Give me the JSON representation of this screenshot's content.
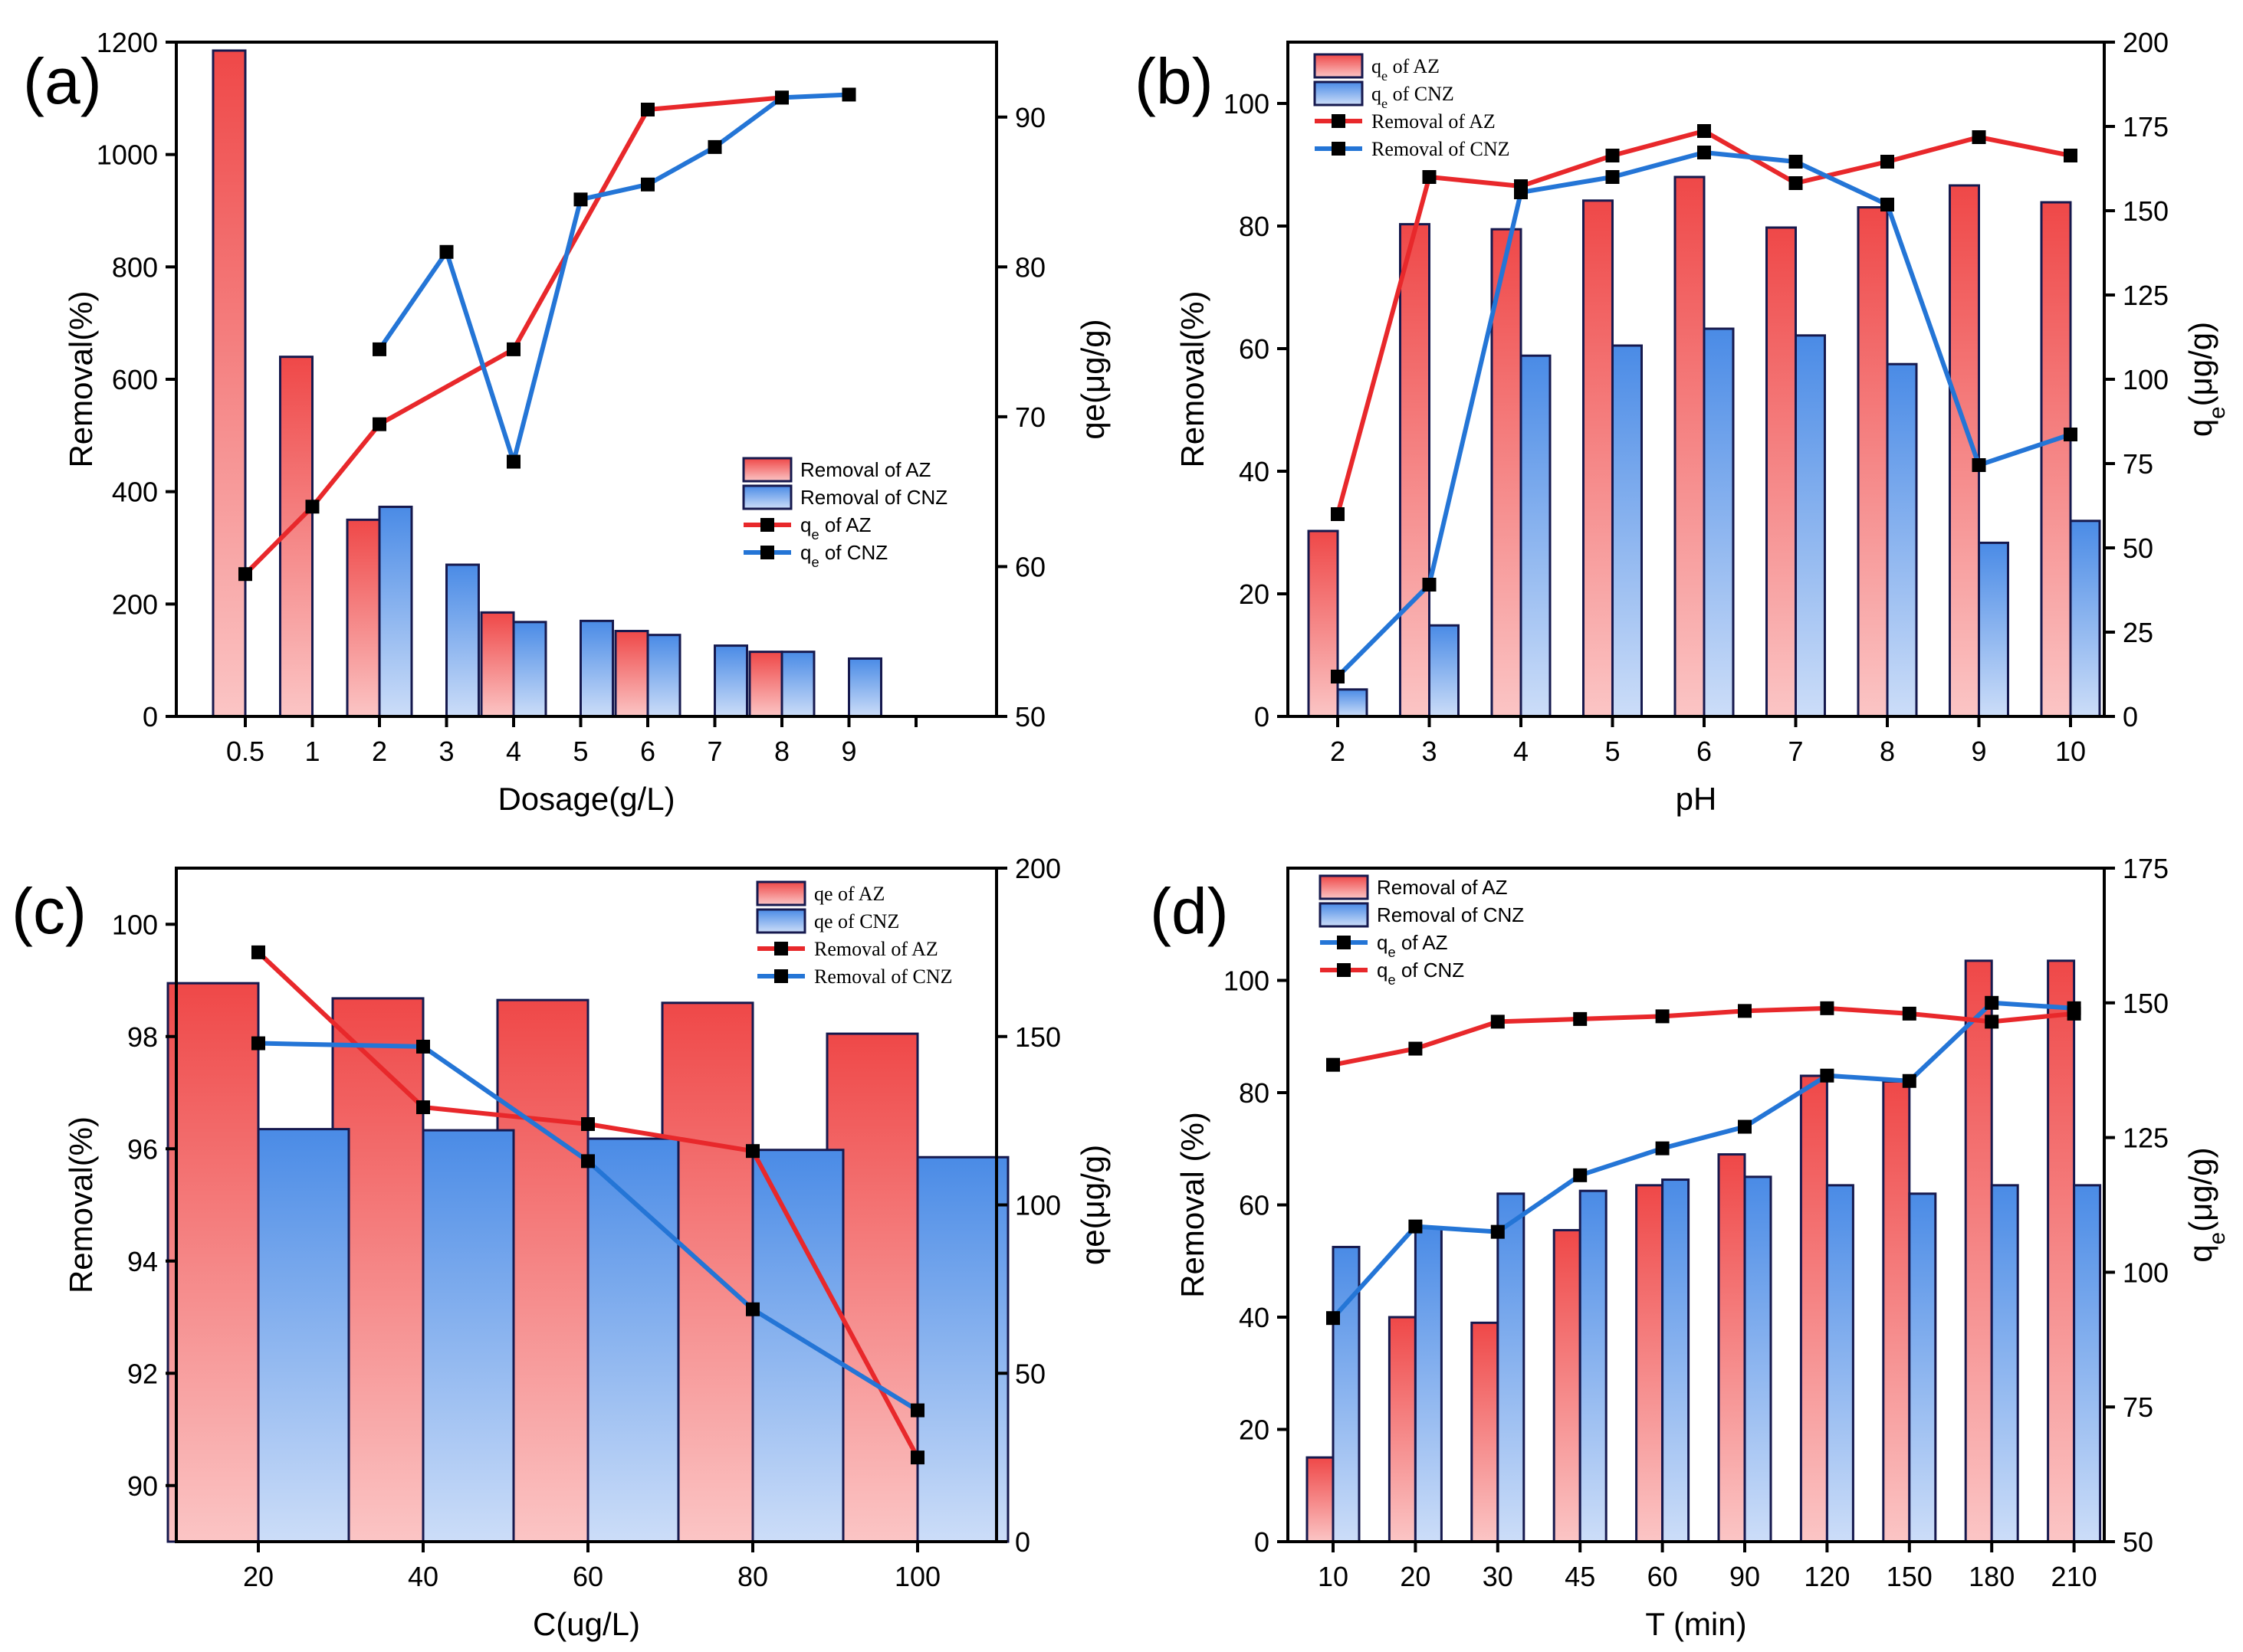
{
  "chart_data": [
    {
      "panel": "(a)",
      "type": "bar",
      "xlabel": "Dosage(g/L)",
      "ylabel": "Removal(%)",
      "y2label": "qe(μg/g)",
      "xticks": [
        "0.5",
        "1",
        "2",
        "3",
        "4",
        "5",
        "6",
        "7",
        "8",
        "9"
      ],
      "ylim": [
        0,
        1200
      ],
      "yticks": [
        0,
        200,
        400,
        600,
        800,
        1000,
        1200
      ],
      "y2lim": [
        50,
        95
      ],
      "y2ticks": [
        50,
        60,
        70,
        80,
        90
      ],
      "series": [
        {
          "name": "Removal of AZ",
          "kind": "bar",
          "axis": "left",
          "points": [
            [
              0.5,
              1185
            ],
            [
              1,
              640
            ],
            [
              2,
              350
            ],
            [
              4,
              185
            ],
            [
              6,
              152
            ],
            [
              8,
              115
            ]
          ]
        },
        {
          "name": "Removal of CNZ",
          "kind": "bar",
          "axis": "left",
          "points": [
            [
              2,
              373
            ],
            [
              3,
              270
            ],
            [
              4,
              168
            ],
            [
              5,
              170
            ],
            [
              6,
              145
            ],
            [
              7,
              126
            ],
            [
              8,
              115
            ],
            [
              9,
              103
            ]
          ]
        },
        {
          "name": "qe of AZ",
          "kind": "line",
          "axis": "right",
          "color": "#E8282B",
          "points": [
            [
              0.5,
              59.5
            ],
            [
              1,
              64
            ],
            [
              2,
              69.5
            ],
            [
              4,
              74.5
            ],
            [
              6,
              90.5
            ],
            [
              8,
              91.3
            ]
          ]
        },
        {
          "name": "qe of CNZ",
          "kind": "line",
          "axis": "right",
          "color": "#2475D6",
          "points": [
            [
              2,
              74.5
            ],
            [
              3,
              81
            ],
            [
              4,
              67
            ],
            [
              5,
              84.5
            ],
            [
              6,
              85.5
            ],
            [
              7,
              88
            ],
            [
              8,
              91.3
            ],
            [
              9,
              91.5
            ]
          ]
        }
      ]
    },
    {
      "panel": "(b)",
      "type": "bar",
      "xlabel": "pH",
      "ylabel": "Removal(%)",
      "y2label": "qe(μg/g)",
      "xticks": [
        "2",
        "3",
        "4",
        "5",
        "6",
        "7",
        "8",
        "9",
        "10"
      ],
      "ylim": [
        0,
        110
      ],
      "yticks": [
        0,
        20,
        40,
        60,
        80,
        100
      ],
      "y2lim": [
        0,
        200
      ],
      "y2ticks": [
        0,
        25,
        50,
        75,
        100,
        125,
        150,
        175,
        200
      ],
      "series": [
        {
          "name": "qe of AZ",
          "kind": "bar",
          "axis": "right",
          "points": [
            [
              2,
              55
            ],
            [
              3,
              146
            ],
            [
              4,
              144.5
            ],
            [
              5,
              153
            ],
            [
              6,
              160
            ],
            [
              7,
              145
            ],
            [
              8,
              151
            ],
            [
              9,
              157.5
            ],
            [
              10,
              152.5
            ]
          ]
        },
        {
          "name": "qe of CNZ",
          "kind": "bar",
          "axis": "right",
          "points": [
            [
              2,
              8
            ],
            [
              3,
              27
            ],
            [
              4,
              107
            ],
            [
              5,
              110
            ],
            [
              6,
              115
            ],
            [
              7,
              113
            ],
            [
              8,
              104.5
            ],
            [
              9,
              51.5
            ],
            [
              10,
              58
            ]
          ]
        },
        {
          "name": "Removal of AZ",
          "kind": "line",
          "axis": "left",
          "color": "#E8282B",
          "points": [
            [
              2,
              33
            ],
            [
              3,
              88
            ],
            [
              4,
              86.5
            ],
            [
              5,
              91.5
            ],
            [
              6,
              95.5
            ],
            [
              7,
              87
            ],
            [
              8,
              90.5
            ],
            [
              9,
              94.5
            ],
            [
              10,
              91.5
            ]
          ]
        },
        {
          "name": "Removal of CNZ",
          "kind": "line",
          "axis": "left",
          "color": "#2475D6",
          "points": [
            [
              2,
              6.5
            ],
            [
              3,
              21.5
            ],
            [
              4,
              85.5
            ],
            [
              5,
              88
            ],
            [
              6,
              92
            ],
            [
              7,
              90.5
            ],
            [
              8,
              83.5
            ],
            [
              9,
              41
            ],
            [
              10,
              46
            ]
          ]
        }
      ]
    },
    {
      "panel": "(c)",
      "type": "bar",
      "xlabel": "C(ug/L)",
      "ylabel": "Removal(%)",
      "y2label": "qe(μg/g)",
      "xticks": [
        "20",
        "40",
        "60",
        "80",
        "100"
      ],
      "ylim": [
        89,
        101
      ],
      "yticks": [
        90,
        92,
        94,
        96,
        98,
        100
      ],
      "y2lim": [
        0,
        200
      ],
      "y2ticks": [
        0,
        50,
        100,
        150,
        200
      ],
      "series": [
        {
          "name": "qe of AZ",
          "kind": "bar",
          "axis": "left",
          "points": [
            [
              20,
              98.95
            ],
            [
              40,
              98.68
            ],
            [
              60,
              98.65
            ],
            [
              80,
              98.6
            ],
            [
              100,
              98.05
            ]
          ]
        },
        {
          "name": "qe of CNZ",
          "kind": "bar",
          "axis": "left",
          "points": [
            [
              20,
              96.35
            ],
            [
              40,
              96.33
            ],
            [
              60,
              96.18
            ],
            [
              80,
              95.98
            ],
            [
              100,
              95.85
            ]
          ]
        },
        {
          "name": "Removal of AZ",
          "kind": "line",
          "axis": "right",
          "color": "#E8282B",
          "points": [
            [
              20,
              175
            ],
            [
              40,
              129
            ],
            [
              60,
              124
            ],
            [
              80,
              116
            ],
            [
              100,
              25
            ]
          ]
        },
        {
          "name": "Removal of CNZ",
          "kind": "line",
          "axis": "right",
          "color": "#2475D6",
          "points": [
            [
              20,
              148
            ],
            [
              40,
              147
            ],
            [
              60,
              113
            ],
            [
              80,
              69
            ],
            [
              100,
              39
            ]
          ]
        }
      ]
    },
    {
      "panel": "(d)",
      "type": "bar",
      "xlabel": "T  (min)",
      "ylabel": "Removal (%)",
      "y2label": "qe(μg/g)",
      "xticks": [
        "10",
        "20",
        "30",
        "45",
        "60",
        "90",
        "120",
        "150",
        "180",
        "210"
      ],
      "ylim": [
        0,
        120
      ],
      "yticks": [
        0,
        20,
        40,
        60,
        80,
        100
      ],
      "y2lim": [
        50,
        175
      ],
      "y2ticks": [
        50,
        75,
        100,
        125,
        150,
        175
      ],
      "series": [
        {
          "name": "Removal of AZ",
          "kind": "bar",
          "axis": "left",
          "points": [
            [
              10,
              15
            ],
            [
              20,
              40
            ],
            [
              30,
              39
            ],
            [
              45,
              55.5
            ],
            [
              60,
              63.5
            ],
            [
              90,
              69
            ],
            [
              120,
              83
            ],
            [
              150,
              82
            ],
            [
              180,
              103.5
            ],
            [
              210,
              103.5
            ]
          ]
        },
        {
          "name": "Removal of CNZ",
          "kind": "bar",
          "axis": "left",
          "points": [
            [
              10,
              52.5
            ],
            [
              20,
              56
            ],
            [
              30,
              62
            ],
            [
              45,
              62.5
            ],
            [
              60,
              64.5
            ],
            [
              90,
              65
            ],
            [
              120,
              63.5
            ],
            [
              150,
              62
            ],
            [
              180,
              63.5
            ],
            [
              210,
              63.5
            ]
          ]
        },
        {
          "name": "qe of AZ",
          "kind": "line",
          "axis": "right",
          "color": "#2475D6",
          "points": [
            [
              10,
              91.5
            ],
            [
              20,
              108.5
            ],
            [
              30,
              107.5
            ],
            [
              45,
              118
            ],
            [
              60,
              123
            ],
            [
              90,
              127
            ],
            [
              120,
              136.5
            ],
            [
              150,
              135.5
            ],
            [
              180,
              150
            ],
            [
              210,
              149
            ]
          ]
        },
        {
          "name": "qe of CNZ",
          "kind": "line",
          "axis": "right",
          "color": "#E8282B",
          "points": [
            [
              10,
              138.5
            ],
            [
              20,
              141.5
            ],
            [
              30,
              146.5
            ],
            [
              45,
              147
            ],
            [
              60,
              147.5
            ],
            [
              90,
              148.5
            ],
            [
              120,
              149
            ],
            [
              150,
              148
            ],
            [
              180,
              146.5
            ],
            [
              210,
              148
            ]
          ]
        }
      ]
    }
  ],
  "colors": {
    "red_bar_top": "#EF4848",
    "red_bar_bottom": "#FBC5C5",
    "blue_bar_top": "#4A8BE6",
    "blue_bar_bottom": "#CCDDF8",
    "bar_border": "#16194E"
  }
}
